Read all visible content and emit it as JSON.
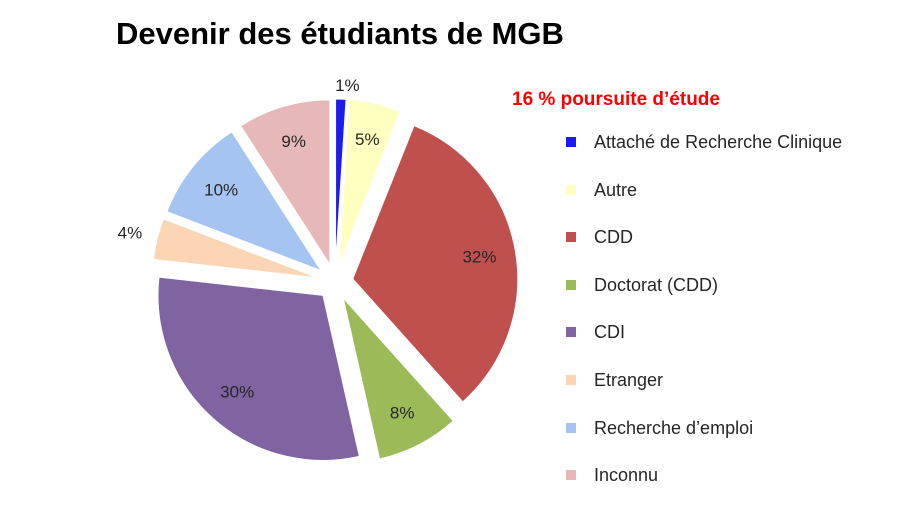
{
  "title": "Devenir des étudiants de MGB",
  "subtitle": "16 % poursuite d’étude",
  "chart_data": {
    "type": "pie",
    "title": "Devenir des étudiants de MGB",
    "subtitle": "16 % poursuite d’étude",
    "legend_position": "right",
    "slices": [
      {
        "name": "Attaché de Recherche Clinique",
        "value": 1,
        "label": "1%",
        "color": "#1c1cf0"
      },
      {
        "name": "Autre",
        "value": 5,
        "label": "5%",
        "color": "#ffffc0"
      },
      {
        "name": "CDD",
        "value": 32,
        "label": "32%",
        "color": "#c0504d"
      },
      {
        "name": "Doctorat (CDD)",
        "value": 8,
        "label": "8%",
        "color": "#9bbb59"
      },
      {
        "name": "CDI",
        "value": 30,
        "label": "30%",
        "color": "#8064a2"
      },
      {
        "name": "Etranger",
        "value": 4,
        "label": "4%",
        "color": "#fcd5b5"
      },
      {
        "name": "Recherche d’emploi",
        "value": 10,
        "label": "10%",
        "color": "#a6c4f2"
      },
      {
        "name": "Inconnu",
        "value": 9,
        "label": "9%",
        "color": "#e6b9b8"
      }
    ]
  }
}
